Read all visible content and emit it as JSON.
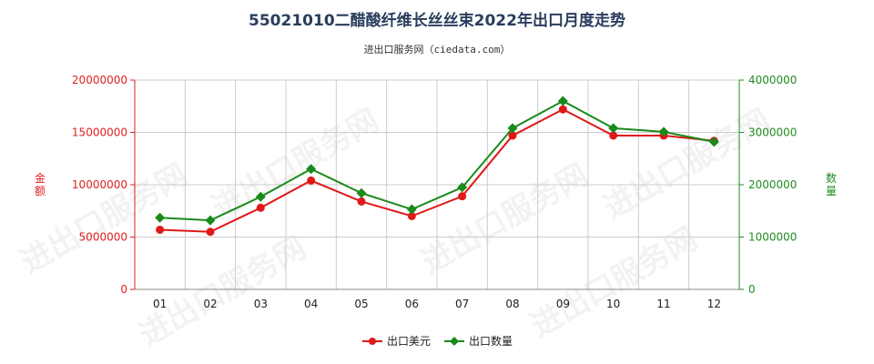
{
  "title": "55021010二醋酸纤维长丝丝束2022年出口月度走势",
  "subtitle": "进出口服务网（ciedata.com）",
  "watermark": "进出口服务网",
  "colors": {
    "left_axis": "#e02020",
    "right_axis": "#228B22",
    "series_value": "#e01818",
    "series_quantity": "#1a8a1a",
    "grid": "#cccccc"
  },
  "chart_data": {
    "type": "line",
    "categories": [
      "01",
      "02",
      "03",
      "04",
      "05",
      "06",
      "07",
      "08",
      "09",
      "10",
      "11",
      "12"
    ],
    "left_axis": {
      "label": "金额",
      "ylim": [
        0,
        20000000
      ],
      "ticks": [
        0,
        5000000,
        10000000,
        15000000,
        20000000
      ],
      "tick_labels": [
        "0",
        "5000000",
        "10000000",
        "15000000",
        "20000000"
      ]
    },
    "right_axis": {
      "label": "数量",
      "ylim": [
        0,
        4000000
      ],
      "ticks": [
        0,
        1000000,
        2000000,
        3000000,
        4000000
      ],
      "tick_labels": [
        "0",
        "1000000",
        "2000000",
        "3000000",
        "4000000"
      ]
    },
    "series": [
      {
        "name": "出口美元",
        "axis": "left",
        "marker": "circle",
        "values": [
          5700000,
          5500000,
          7800000,
          10400000,
          8400000,
          7000000,
          8900000,
          14700000,
          17200000,
          14700000,
          14700000,
          14200000
        ]
      },
      {
        "name": "出口数量",
        "axis": "right",
        "marker": "diamond",
        "values": [
          1370000,
          1320000,
          1770000,
          2300000,
          1840000,
          1530000,
          1950000,
          3080000,
          3600000,
          3080000,
          3010000,
          2820000
        ]
      }
    ],
    "grid": true,
    "legend_position": "bottom-center"
  }
}
